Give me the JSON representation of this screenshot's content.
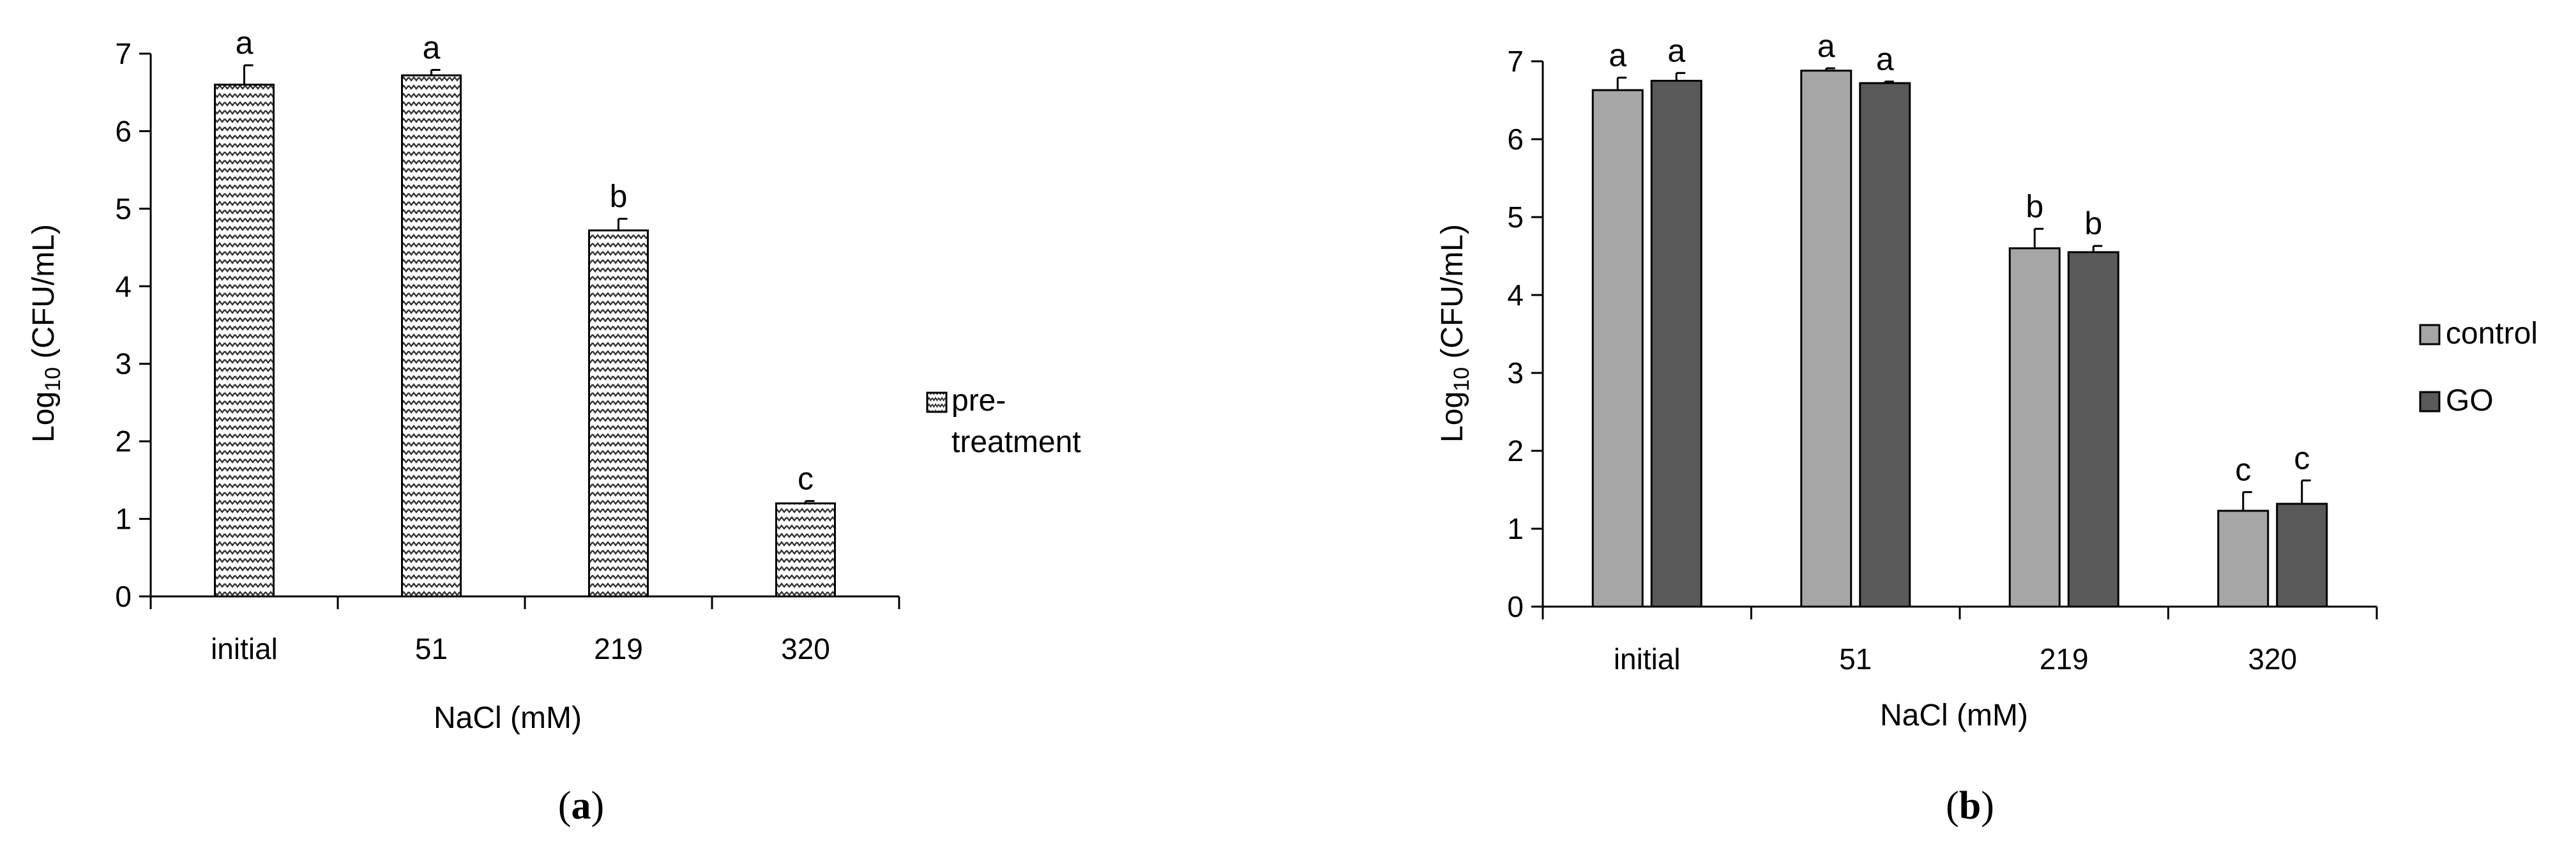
{
  "chart_data": [
    {
      "type": "bar",
      "panel_label": "a",
      "categories": [
        "initial",
        "51",
        "219",
        "320"
      ],
      "series": [
        {
          "name": "pre-treatment",
          "legend_lines": [
            "pre-",
            "treatment"
          ],
          "pattern": "zigzag",
          "values": [
            6.6,
            6.72,
            4.72,
            1.2
          ],
          "errors": [
            0.25,
            0.07,
            0.15,
            0.03
          ],
          "letters": [
            "a",
            "a",
            "b",
            "c"
          ]
        }
      ],
      "title": "",
      "xlabel": "NaCl (mM)",
      "ylabel": {
        "prefix": "Log",
        "sub": "10",
        "suffix": " (CFU/mL)"
      },
      "ylim": [
        0,
        7
      ],
      "yticks": [
        "0",
        "1",
        "2",
        "3",
        "4",
        "5",
        "6",
        "7"
      ],
      "grid": false,
      "legend_position": "right"
    },
    {
      "type": "bar",
      "panel_label": "b",
      "categories": [
        "initial",
        "51",
        "219",
        "320"
      ],
      "series": [
        {
          "name": "control",
          "color": "#a6a6a6",
          "values": [
            6.63,
            6.88,
            4.6,
            1.23
          ],
          "errors": [
            0.16,
            0.03,
            0.25,
            0.24
          ],
          "letters": [
            "a",
            "a",
            "b",
            "c"
          ]
        },
        {
          "name": "GO",
          "color": "#595959",
          "values": [
            6.75,
            6.72,
            4.55,
            1.32
          ],
          "errors": [
            0.1,
            0.02,
            0.08,
            0.3
          ],
          "letters": [
            "a",
            "a",
            "b",
            "c"
          ]
        }
      ],
      "title": "",
      "xlabel": "NaCl (mM)",
      "ylabel": {
        "prefix": "Log",
        "sub": "10",
        "suffix": " (CFU/mL)"
      },
      "ylim": [
        0,
        7
      ],
      "yticks": [
        "0",
        "1",
        "2",
        "3",
        "4",
        "5",
        "6",
        "7"
      ],
      "grid": false,
      "legend_position": "right"
    }
  ]
}
